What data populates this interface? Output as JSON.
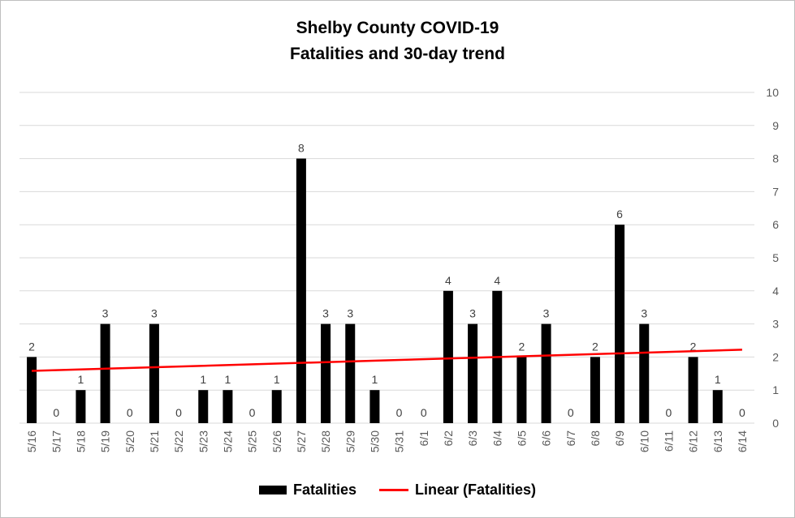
{
  "chart_data": {
    "type": "bar",
    "title_line1": "Shelby County COVID-19",
    "title_line2": "Fatalities and 30-day trend",
    "categories": [
      "5/16",
      "5/17",
      "5/18",
      "5/19",
      "5/20",
      "5/21",
      "5/22",
      "5/23",
      "5/24",
      "5/25",
      "5/26",
      "5/27",
      "5/28",
      "5/29",
      "5/30",
      "5/31",
      "6/1",
      "6/2",
      "6/3",
      "6/4",
      "6/5",
      "6/6",
      "6/7",
      "6/8",
      "6/9",
      "6/10",
      "6/11",
      "6/12",
      "6/13",
      "6/14"
    ],
    "series": [
      {
        "name": "Fatalities",
        "values": [
          2,
          0,
          1,
          3,
          0,
          3,
          0,
          1,
          1,
          0,
          1,
          8,
          3,
          3,
          1,
          0,
          0,
          4,
          3,
          4,
          2,
          3,
          0,
          2,
          6,
          3,
          0,
          2,
          1,
          0
        ],
        "color": "#000000"
      }
    ],
    "trendline": {
      "name": "Linear (Fatalities)",
      "start": 1.58,
      "end": 2.22,
      "color": "#ff0000"
    },
    "ylim": [
      0,
      10
    ],
    "y_ticks": [
      0,
      1,
      2,
      3,
      4,
      5,
      6,
      7,
      8,
      9,
      10
    ],
    "y_axis_side": "right",
    "grid": true,
    "legend_position": "bottom",
    "data_labels": true
  }
}
